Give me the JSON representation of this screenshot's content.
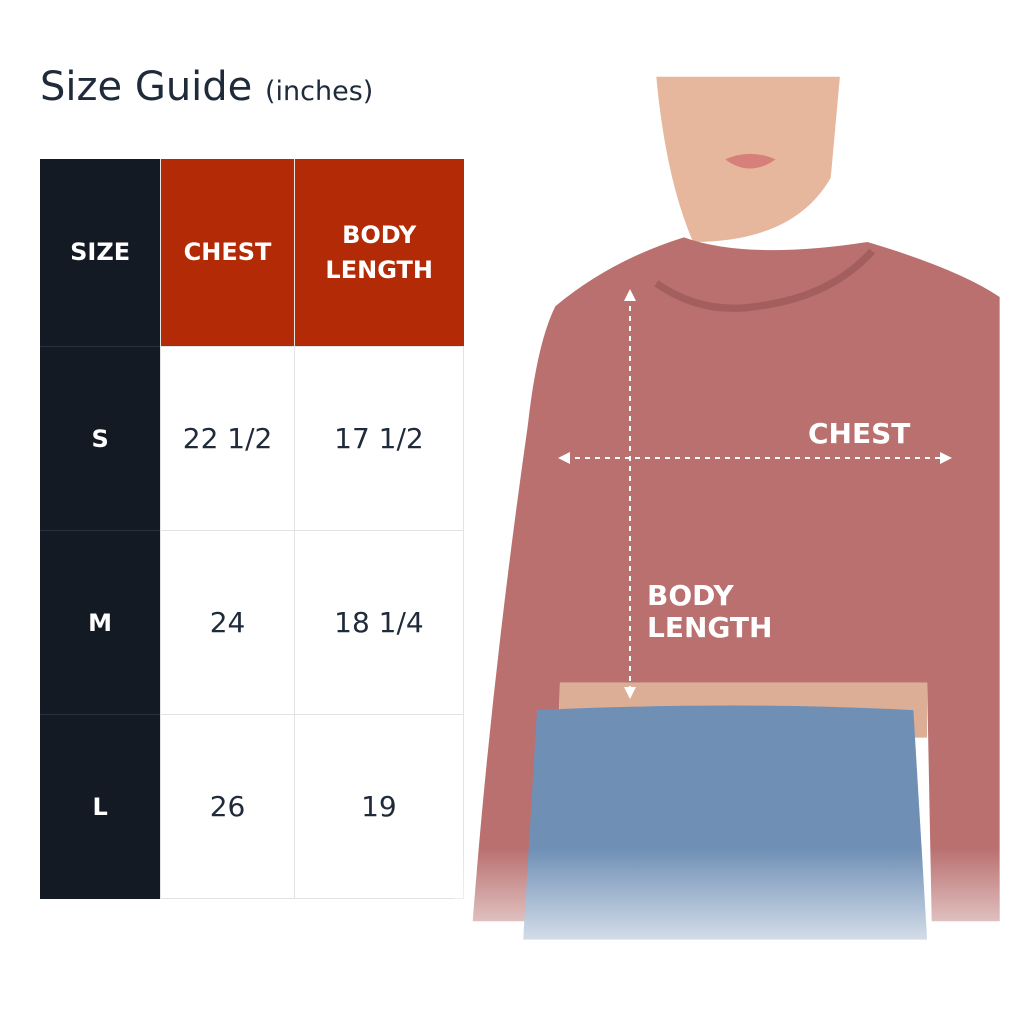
{
  "title": {
    "main": "Size Guide",
    "unit": "(inches)"
  },
  "table": {
    "headers": [
      "SIZE",
      "CHEST",
      "BODY LENGTH"
    ],
    "rows": [
      {
        "size": "S",
        "chest": "22 1/2",
        "body_length": "17 1/2"
      },
      {
        "size": "M",
        "chest": "24",
        "body_length": "18 1/4"
      },
      {
        "size": "L",
        "chest": "26",
        "body_length": "19"
      }
    ]
  },
  "diagram": {
    "chest_label": "CHEST",
    "body_length_label_1": "BODY",
    "body_length_label_2": "LENGTH"
  },
  "colors": {
    "header_accent": "#b22a06",
    "size_column": "#141a23",
    "shirt": "#b9706f",
    "jeans": "#6f8fb5"
  }
}
